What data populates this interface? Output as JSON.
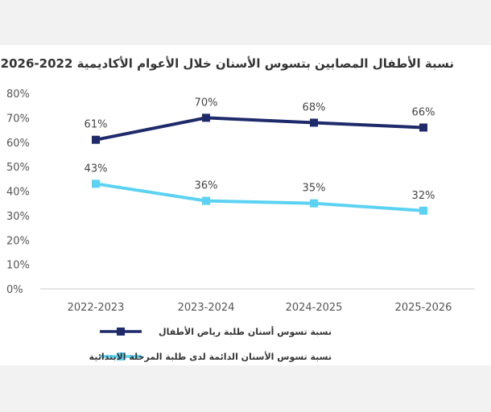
{
  "chart_data": {
    "type": "line",
    "title": "نسبة الأطفال المصابين بتسوس الأسنان خلال الأعوام الأكاديمية 2022-2026",
    "categories": [
      "2022-2023",
      "2023-2024",
      "2024-2025",
      "2025-2026"
    ],
    "y_ticks": [
      "0%",
      "10%",
      "20%",
      "30%",
      "40%",
      "50%",
      "60%",
      "70%",
      "80%"
    ],
    "ylim": [
      0,
      80
    ],
    "grid": false,
    "legend_position": "bottom",
    "series": [
      {
        "name": "نسبة تسوس أسنان طلبة رياض الأطفال",
        "values": [
          61,
          70,
          68,
          66
        ],
        "labels": [
          "61%",
          "70%",
          "68%",
          "66%"
        ],
        "color": "#1f2a6b"
      },
      {
        "name": "نسبة تسوس الأسنان الدائمة لدى طلبة المرحلة الابتدائية",
        "values": [
          43,
          36,
          35,
          32
        ],
        "labels": [
          "43%",
          "36%",
          "35%",
          "32%"
        ],
        "color": "#5bd2f2"
      }
    ]
  }
}
